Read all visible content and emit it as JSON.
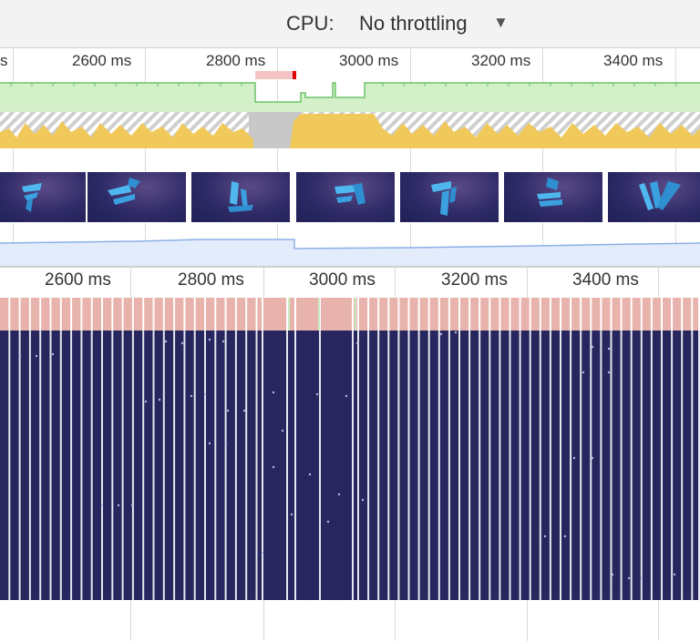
{
  "toolbar": {
    "cpu_label": "CPU:",
    "cpu_value": "No throttling",
    "dropdown_icon": "triangle-down-icon"
  },
  "overview": {
    "ticks": [
      "s",
      "2600 ms",
      "2800 ms",
      "3000 ms",
      "3200 ms",
      "3400 ms"
    ],
    "thumbnail_count": 7
  },
  "main": {
    "ticks": [
      "2600 ms",
      "2800 ms",
      "3000 ms",
      "3200 ms",
      "3400 ms"
    ]
  },
  "colors": {
    "toolbar_bg": "#f3f3f3",
    "fps_green": "#d4f0c8",
    "fps_line": "#6cc46c",
    "cpu_scripting": "#f0c95a",
    "idle_gray": "#c8c8c8",
    "long_frame": "#e8b2ad",
    "frame_bg": "#27265e",
    "memory_line": "#8ab0e6",
    "red_marker": "#e00000"
  }
}
